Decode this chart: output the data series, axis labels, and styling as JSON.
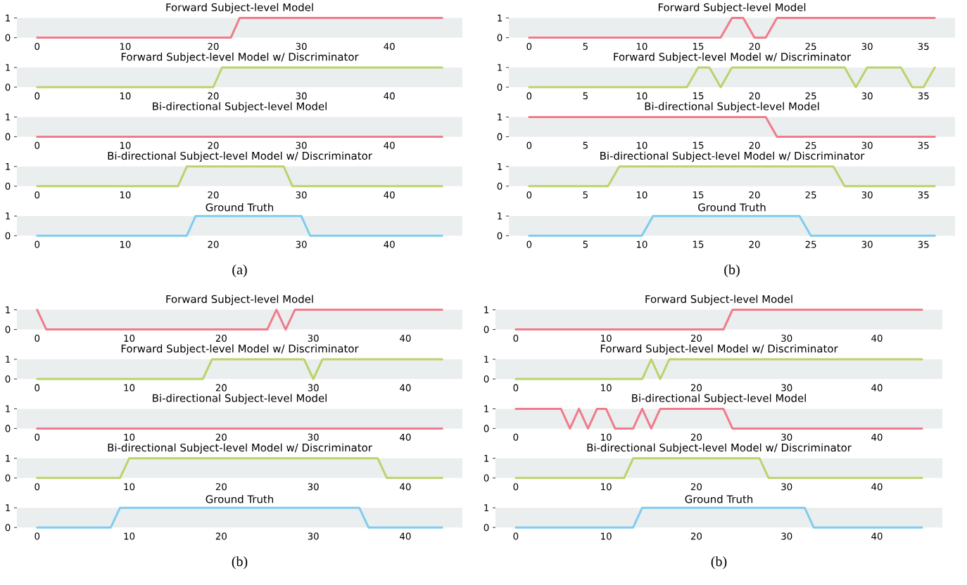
{
  "chart_data": [
    {
      "type": "line",
      "title": "Forward Subject-level Model",
      "x": [
        0,
        22,
        23,
        46
      ],
      "values": [
        0,
        0,
        1,
        1
      ],
      "color": "#f07b8b",
      "xlim": [
        -2.3,
        48.3
      ],
      "ylim": [
        0,
        1
      ],
      "xticks": [
        0,
        10,
        20,
        30,
        40
      ],
      "yticks": [
        0,
        1
      ]
    },
    {
      "type": "line",
      "title": "Forward Subject-level Model w/ Discriminator",
      "x": [
        0,
        20,
        21,
        46
      ],
      "values": [
        0,
        0,
        1,
        1
      ],
      "color": "#bcd26c",
      "xlim": [
        -2.3,
        48.3
      ],
      "ylim": [
        0,
        1
      ],
      "xticks": [
        0,
        10,
        20,
        30,
        40
      ],
      "yticks": [
        0,
        1
      ]
    },
    {
      "type": "line",
      "title": "Bi-directional Subject-level Model",
      "x": [
        0,
        46
      ],
      "values": [
        0,
        0
      ],
      "color": "#f07b8b",
      "xlim": [
        -2.3,
        48.3
      ],
      "ylim": [
        0,
        1
      ],
      "xticks": [
        0,
        10,
        20,
        30,
        40
      ],
      "yticks": [
        0,
        1
      ]
    },
    {
      "type": "line",
      "title": "Bi-directional Subject-level Model w/ Discriminator",
      "x": [
        0,
        16,
        17,
        28,
        29,
        46
      ],
      "values": [
        0,
        0,
        1,
        1,
        0,
        0
      ],
      "color": "#bcd26c",
      "xlim": [
        -2.3,
        48.3
      ],
      "ylim": [
        0,
        1
      ],
      "xticks": [
        0,
        10,
        20,
        30,
        40
      ],
      "yticks": [
        0,
        1
      ]
    },
    {
      "type": "line",
      "title": "Ground Truth",
      "x": [
        0,
        17,
        18,
        30,
        31,
        46
      ],
      "values": [
        0,
        0,
        1,
        1,
        0,
        0
      ],
      "color": "#7ecdef",
      "xlim": [
        -2.3,
        48.3
      ],
      "ylim": [
        0,
        1
      ],
      "xticks": [
        0,
        10,
        20,
        30,
        40
      ],
      "yticks": [
        0,
        1
      ],
      "annotations": [
        "(a)"
      ]
    },
    {
      "type": "line",
      "title": "Forward Subject-level Model",
      "x": [
        0,
        17,
        18,
        19,
        20,
        21,
        22,
        36
      ],
      "values": [
        0,
        0,
        1,
        1,
        0,
        0,
        1,
        1
      ],
      "color": "#f07b8b",
      "xlim": [
        -1.8,
        37.8
      ],
      "ylim": [
        0,
        1
      ],
      "xticks": [
        0,
        5,
        10,
        15,
        20,
        25,
        30,
        35
      ],
      "yticks": [
        0,
        1
      ]
    },
    {
      "type": "line",
      "title": "Forward Subject-level Model w/ Discriminator",
      "x": [
        0,
        14,
        15,
        16,
        17,
        18,
        28,
        29,
        30,
        33,
        34,
        35,
        36
      ],
      "values": [
        0,
        0,
        1,
        1,
        0,
        1,
        1,
        0,
        1,
        1,
        0,
        0,
        1
      ],
      "color": "#bcd26c",
      "xlim": [
        -1.8,
        37.8
      ],
      "ylim": [
        0,
        1
      ],
      "xticks": [
        0,
        5,
        10,
        15,
        20,
        25,
        30,
        35
      ],
      "yticks": [
        0,
        1
      ]
    },
    {
      "type": "line",
      "title": "Bi-directional Subject-level Model",
      "x": [
        0,
        21,
        22,
        36
      ],
      "values": [
        1,
        1,
        0,
        0
      ],
      "color": "#f07b8b",
      "xlim": [
        -1.8,
        37.8
      ],
      "ylim": [
        0,
        1
      ],
      "xticks": [
        0,
        5,
        10,
        15,
        20,
        25,
        30,
        35
      ],
      "yticks": [
        0,
        1
      ]
    },
    {
      "type": "line",
      "title": "Bi-directional Subject-level Model w/ Discriminator",
      "x": [
        0,
        7,
        8,
        27,
        28,
        36
      ],
      "values": [
        0,
        0,
        1,
        1,
        0,
        0
      ],
      "color": "#bcd26c",
      "xlim": [
        -1.8,
        37.8
      ],
      "ylim": [
        0,
        1
      ],
      "xticks": [
        0,
        5,
        10,
        15,
        20,
        25,
        30,
        35
      ],
      "yticks": [
        0,
        1
      ]
    },
    {
      "type": "line",
      "title": "Ground Truth",
      "x": [
        0,
        10,
        11,
        24,
        25,
        36
      ],
      "values": [
        0,
        0,
        1,
        1,
        0,
        0
      ],
      "color": "#7ecdef",
      "xlim": [
        -1.8,
        37.8
      ],
      "ylim": [
        0,
        1
      ],
      "xticks": [
        0,
        5,
        10,
        15,
        20,
        25,
        30,
        35
      ],
      "yticks": [
        0,
        1
      ],
      "annotations": [
        "(b)"
      ]
    },
    {
      "type": "line",
      "title": "Forward Subject-level Model",
      "x": [
        0,
        1,
        25,
        26,
        27,
        28,
        44
      ],
      "values": [
        1,
        0,
        0,
        1,
        0,
        1,
        1
      ],
      "color": "#f07b8b",
      "xlim": [
        -2.2,
        46.2
      ],
      "ylim": [
        0,
        1
      ],
      "xticks": [
        0,
        10,
        20,
        30,
        40
      ],
      "yticks": [
        0,
        1
      ]
    },
    {
      "type": "line",
      "title": "Forward Subject-level Model w/ Discriminator",
      "x": [
        0,
        18,
        19,
        29,
        30,
        31,
        44
      ],
      "values": [
        0,
        0,
        1,
        1,
        0,
        1,
        1
      ],
      "color": "#bcd26c",
      "xlim": [
        -2.2,
        46.2
      ],
      "ylim": [
        0,
        1
      ],
      "xticks": [
        0,
        10,
        20,
        30,
        40
      ],
      "yticks": [
        0,
        1
      ]
    },
    {
      "type": "line",
      "title": "Bi-directional Subject-level Model",
      "x": [
        0,
        44
      ],
      "values": [
        0,
        0
      ],
      "color": "#f07b8b",
      "xlim": [
        -2.2,
        46.2
      ],
      "ylim": [
        0,
        1
      ],
      "xticks": [
        0,
        10,
        20,
        30,
        40
      ],
      "yticks": [
        0,
        1
      ]
    },
    {
      "type": "line",
      "title": "Bi-directional Subject-level Model w/ Discriminator",
      "x": [
        0,
        9,
        10,
        37,
        38,
        44
      ],
      "values": [
        0,
        0,
        1,
        1,
        0,
        0
      ],
      "color": "#bcd26c",
      "xlim": [
        -2.2,
        46.2
      ],
      "ylim": [
        0,
        1
      ],
      "xticks": [
        0,
        10,
        20,
        30,
        40
      ],
      "yticks": [
        0,
        1
      ]
    },
    {
      "type": "line",
      "title": "Ground Truth",
      "x": [
        0,
        8,
        9,
        35,
        36,
        44
      ],
      "values": [
        0,
        0,
        1,
        1,
        0,
        0
      ],
      "color": "#7ecdef",
      "xlim": [
        -2.2,
        46.2
      ],
      "ylim": [
        0,
        1
      ],
      "xticks": [
        0,
        10,
        20,
        30,
        40
      ],
      "yticks": [
        0,
        1
      ],
      "annotations": [
        "(b)"
      ]
    },
    {
      "type": "line",
      "title": "Forward Subject-level Model",
      "x": [
        0,
        23,
        24,
        45
      ],
      "values": [
        0,
        0,
        1,
        1
      ],
      "color": "#f07b8b",
      "xlim": [
        -2.25,
        47.25
      ],
      "ylim": [
        0,
        1
      ],
      "xticks": [
        0,
        10,
        20,
        30,
        40
      ],
      "yticks": [
        0,
        1
      ]
    },
    {
      "type": "line",
      "title": "Forward Subject-level Model w/ Discriminator",
      "x": [
        0,
        14,
        15,
        16,
        17,
        45
      ],
      "values": [
        0,
        0,
        1,
        0,
        1,
        1
      ],
      "color": "#bcd26c",
      "xlim": [
        -2.25,
        47.25
      ],
      "ylim": [
        0,
        1
      ],
      "xticks": [
        0,
        10,
        20,
        30,
        40
      ],
      "yticks": [
        0,
        1
      ]
    },
    {
      "type": "line",
      "title": "Bi-directional Subject-level Model",
      "x": [
        0,
        5,
        6,
        7,
        8,
        9,
        10,
        11,
        13,
        14,
        15,
        16,
        23,
        24,
        45
      ],
      "values": [
        1,
        1,
        0,
        1,
        0,
        1,
        1,
        0,
        0,
        1,
        0,
        1,
        1,
        0,
        0
      ],
      "color": "#f07b8b",
      "xlim": [
        -2.25,
        47.25
      ],
      "ylim": [
        0,
        1
      ],
      "xticks": [
        0,
        10,
        20,
        30,
        40
      ],
      "yticks": [
        0,
        1
      ]
    },
    {
      "type": "line",
      "title": "Bi-directional Subject-level Model w/ Discriminator",
      "x": [
        0,
        12,
        13,
        27,
        28,
        45
      ],
      "values": [
        0,
        0,
        1,
        1,
        0,
        0
      ],
      "color": "#bcd26c",
      "xlim": [
        -2.25,
        47.25
      ],
      "ylim": [
        0,
        1
      ],
      "xticks": [
        0,
        10,
        20,
        30,
        40
      ],
      "yticks": [
        0,
        1
      ]
    },
    {
      "type": "line",
      "title": "Ground Truth",
      "x": [
        0,
        13,
        14,
        32,
        33,
        45
      ],
      "values": [
        0,
        0,
        1,
        1,
        0,
        0
      ],
      "color": "#7ecdef",
      "xlim": [
        -2.25,
        47.25
      ],
      "ylim": [
        0,
        1
      ],
      "xticks": [
        0,
        10,
        20,
        30,
        40
      ],
      "yticks": [
        0,
        1
      ],
      "annotations": [
        "(b)"
      ]
    }
  ]
}
